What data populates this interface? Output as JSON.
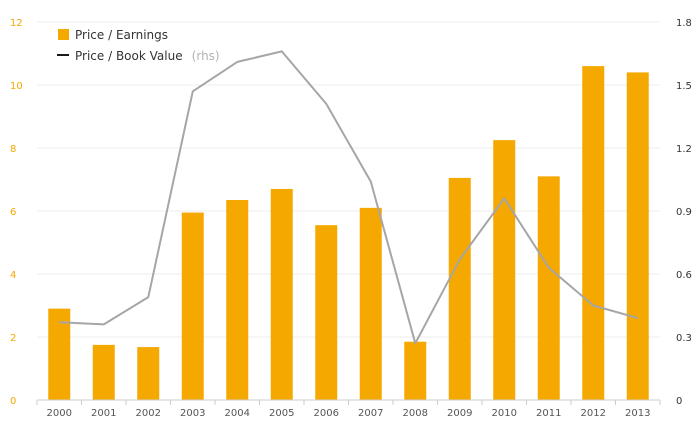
{
  "chart_data": {
    "type": "bar",
    "categories": [
      "2000",
      "2001",
      "2002",
      "2003",
      "2004",
      "2005",
      "2006",
      "2007",
      "2008",
      "2009",
      "2010",
      "2011",
      "2012",
      "2013"
    ],
    "series": [
      {
        "name": "Price / Earnings",
        "type": "bar",
        "axis": "left",
        "color": "#f5a800",
        "values": [
          2.9,
          1.75,
          1.68,
          5.95,
          6.35,
          6.7,
          5.55,
          6.1,
          1.85,
          7.05,
          8.25,
          7.1,
          10.6,
          10.4
        ]
      },
      {
        "name": "Price / Book Value",
        "name_suffix": "(rhs)",
        "type": "line",
        "axis": "right",
        "color": "#a6a6a6",
        "values": [
          0.37,
          0.36,
          0.49,
          1.47,
          1.61,
          1.66,
          1.41,
          1.04,
          0.27,
          0.67,
          0.96,
          0.63,
          0.45,
          0.39
        ]
      }
    ],
    "y_left": {
      "min": 0,
      "max": 12,
      "ticks": [
        "0",
        "2",
        "4",
        "6",
        "8",
        "10",
        "12"
      ]
    },
    "y_right": {
      "min": 0,
      "max": 1.8,
      "ticks": [
        "0",
        "0.3",
        "0.6",
        "0.9",
        "1.2",
        "1.5",
        "1.8"
      ]
    },
    "grid": true,
    "legend_position": "top-left"
  }
}
